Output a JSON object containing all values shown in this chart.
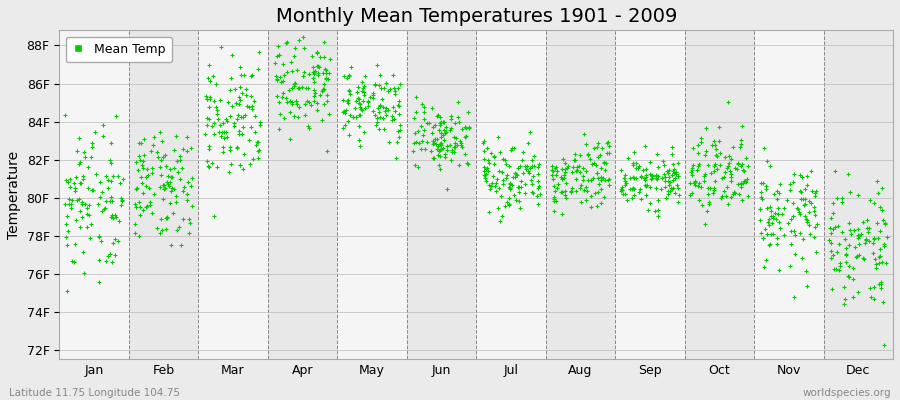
{
  "title": "Monthly Mean Temperatures 1901 - 2009",
  "ylabel": "Temperature",
  "xlabel_labels": [
    "Jan",
    "Feb",
    "Mar",
    "Apr",
    "May",
    "Jun",
    "Jul",
    "Aug",
    "Sep",
    "Oct",
    "Nov",
    "Dec"
  ],
  "ytick_labels": [
    "72F",
    "74F",
    "76F",
    "78F",
    "80F",
    "82F",
    "84F",
    "86F",
    "88F"
  ],
  "ytick_values": [
    72,
    74,
    76,
    78,
    80,
    82,
    84,
    86,
    88
  ],
  "ylim": [
    71.5,
    88.8
  ],
  "dot_color": "#00cc00",
  "dot_size": 6,
  "dot_marker": "P",
  "legend_label": "Mean Temp",
  "background_color": "#ebebeb",
  "plot_bg_color_light": "#e8e8e8",
  "plot_bg_color_dark": "#f5f5f5",
  "title_fontsize": 14,
  "axis_fontsize": 10,
  "tick_fontsize": 9,
  "footer_left": "Latitude 11.75 Longitude 104.75",
  "footer_right": "worldspecies.org",
  "grid_color": "#888888",
  "monthly_means": [
    79.5,
    80.8,
    84.2,
    86.0,
    84.8,
    83.0,
    81.2,
    81.0,
    81.0,
    81.2,
    79.0,
    77.5
  ],
  "monthly_stds": [
    2.0,
    1.5,
    1.6,
    1.2,
    1.0,
    0.9,
    0.9,
    0.9,
    0.8,
    1.0,
    1.4,
    1.8
  ],
  "n_years": 109,
  "seed": 42
}
